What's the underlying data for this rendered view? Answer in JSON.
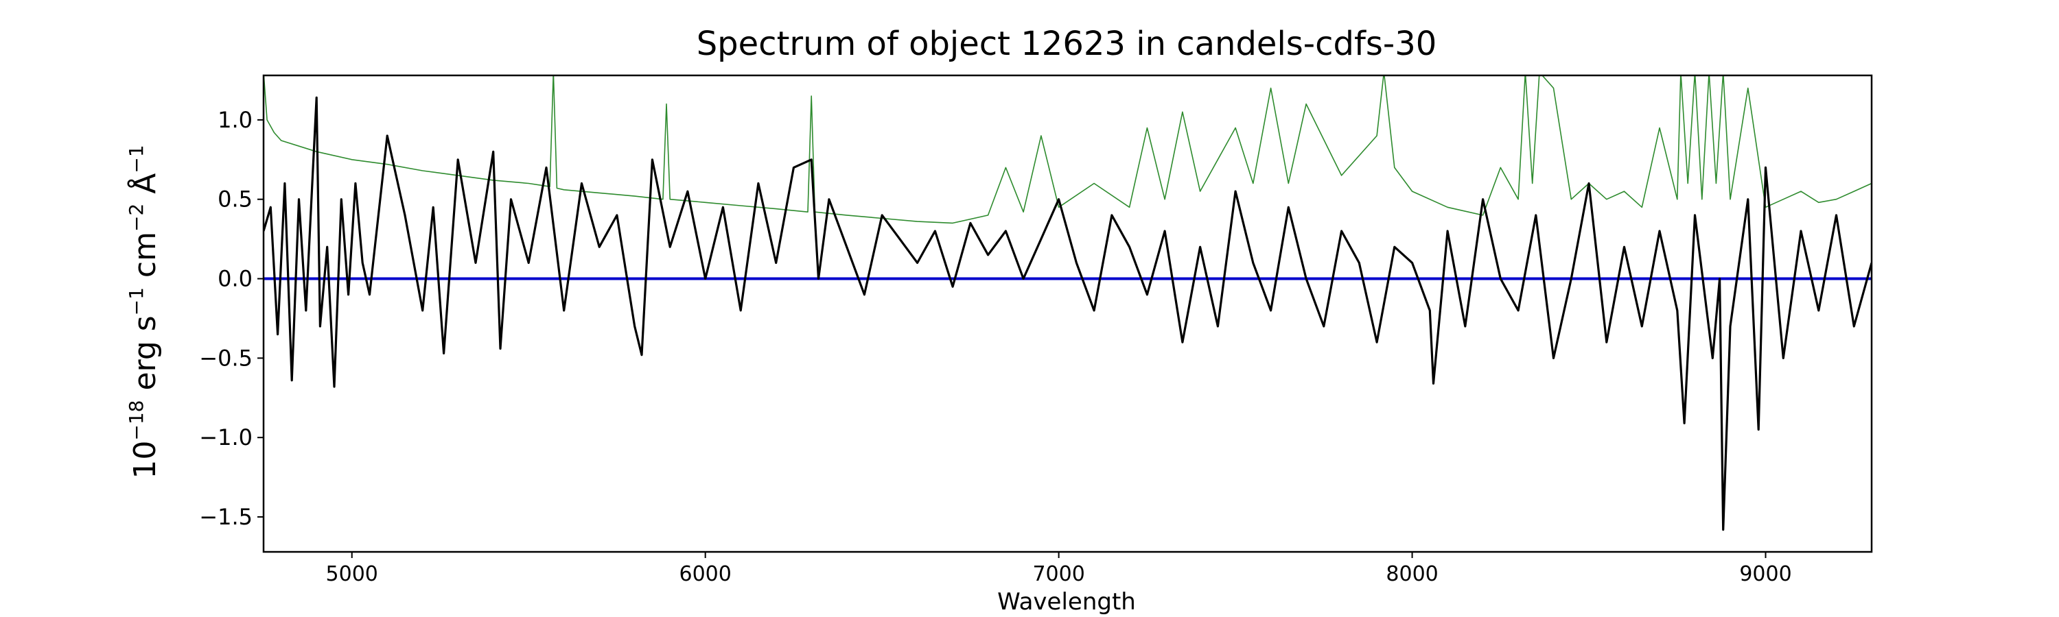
{
  "chart_data": {
    "type": "line",
    "title": "Spectrum of object 12623 in candels-cdfs-30",
    "xlabel": "Wavelength",
    "ylabel": {
      "base": "10",
      "exp1": "−18",
      "unit1": " erg s",
      "exp2": "−1",
      "unit2": " cm",
      "exp3": "−2",
      "unit3": " Å",
      "exp4": "−1"
    },
    "xlim": [
      4750,
      9300
    ],
    "ylim": [
      -1.72,
      1.28
    ],
    "xticks": [
      5000,
      6000,
      7000,
      8000,
      9000
    ],
    "xtick_labels": [
      "5000",
      "6000",
      "7000",
      "8000",
      "9000"
    ],
    "yticks": [
      1.0,
      0.5,
      0.0,
      -0.5,
      -1.0,
      -1.5
    ],
    "ytick_labels": [
      "1.0",
      "0.5",
      "0.0",
      "−0.5",
      "−1.0",
      "−1.5"
    ],
    "grid": false,
    "series": [
      {
        "role": "flux",
        "color": "#000000",
        "x": [
          4750,
          4770,
          4790,
          4810,
          4830,
          4850,
          4870,
          4890,
          4900,
          4910,
          4930,
          4950,
          4970,
          4990,
          5010,
          5030,
          5050,
          5100,
          5150,
          5200,
          5230,
          5260,
          5300,
          5350,
          5400,
          5420,
          5450,
          5500,
          5550,
          5600,
          5650,
          5700,
          5750,
          5800,
          5820,
          5850,
          5900,
          5950,
          6000,
          6050,
          6100,
          6150,
          6200,
          6250,
          6300,
          6320,
          6350,
          6400,
          6450,
          6500,
          6550,
          6600,
          6650,
          6700,
          6750,
          6800,
          6850,
          6900,
          6950,
          7000,
          7050,
          7100,
          7150,
          7200,
          7250,
          7300,
          7350,
          7400,
          7450,
          7500,
          7550,
          7600,
          7650,
          7700,
          7750,
          7800,
          7850,
          7900,
          7950,
          8000,
          8050,
          8060,
          8100,
          8150,
          8200,
          8250,
          8300,
          8350,
          8400,
          8450,
          8500,
          8550,
          8600,
          8650,
          8700,
          8750,
          8770,
          8800,
          8850,
          8870,
          8880,
          8900,
          8950,
          8980,
          9000,
          9050,
          9100,
          9150,
          9200,
          9250,
          9300
        ],
        "y": [
          0.3,
          0.45,
          -0.35,
          0.6,
          -0.64,
          0.5,
          -0.2,
          0.7,
          1.14,
          -0.3,
          0.2,
          -0.68,
          0.5,
          -0.1,
          0.6,
          0.1,
          -0.1,
          0.9,
          0.4,
          -0.2,
          0.45,
          -0.47,
          0.75,
          0.1,
          0.8,
          -0.44,
          0.5,
          0.1,
          0.7,
          -0.2,
          0.6,
          0.2,
          0.4,
          -0.3,
          -0.48,
          0.75,
          0.2,
          0.55,
          0.0,
          0.45,
          -0.2,
          0.6,
          0.1,
          0.7,
          0.75,
          0.0,
          0.5,
          0.2,
          -0.1,
          0.4,
          0.25,
          0.1,
          0.3,
          -0.05,
          0.35,
          0.15,
          0.3,
          0.0,
          0.25,
          0.5,
          0.1,
          -0.2,
          0.4,
          0.2,
          -0.1,
          0.3,
          -0.4,
          0.2,
          -0.3,
          0.55,
          0.1,
          -0.2,
          0.45,
          0.0,
          -0.3,
          0.3,
          0.1,
          -0.4,
          0.2,
          0.1,
          -0.2,
          -0.66,
          0.3,
          -0.3,
          0.5,
          0.0,
          -0.2,
          0.4,
          -0.5,
          0.0,
          0.6,
          -0.4,
          0.2,
          -0.3,
          0.3,
          -0.2,
          -0.91,
          0.4,
          -0.5,
          0.0,
          -1.58,
          -0.3,
          0.5,
          -0.95,
          0.7,
          -0.5,
          0.3,
          -0.2,
          0.4,
          -0.3,
          0.1
        ]
      },
      {
        "role": "error",
        "color": "#2e8b2e",
        "x": [
          4750,
          4760,
          4780,
          4800,
          4900,
          5000,
          5100,
          5200,
          5300,
          5400,
          5500,
          5560,
          5570,
          5580,
          5600,
          5700,
          5800,
          5880,
          5890,
          5900,
          6000,
          6100,
          6200,
          6290,
          6300,
          6310,
          6400,
          6500,
          6600,
          6700,
          6800,
          6850,
          6900,
          6950,
          7000,
          7100,
          7200,
          7250,
          7300,
          7350,
          7400,
          7500,
          7550,
          7600,
          7650,
          7700,
          7800,
          7900,
          7920,
          7950,
          8000,
          8100,
          8200,
          8250,
          8300,
          8320,
          8340,
          8360,
          8400,
          8450,
          8500,
          8550,
          8600,
          8650,
          8700,
          8750,
          8760,
          8780,
          8800,
          8820,
          8840,
          8860,
          8880,
          8900,
          8950,
          9000,
          9050,
          9100,
          9150,
          9200,
          9250,
          9300
        ],
        "y": [
          1.3,
          1.0,
          0.92,
          0.87,
          0.8,
          0.75,
          0.72,
          0.68,
          0.65,
          0.62,
          0.6,
          0.58,
          1.3,
          0.57,
          0.56,
          0.54,
          0.52,
          0.5,
          1.1,
          0.5,
          0.48,
          0.46,
          0.44,
          0.42,
          1.15,
          0.42,
          0.4,
          0.38,
          0.36,
          0.35,
          0.4,
          0.7,
          0.42,
          0.9,
          0.45,
          0.6,
          0.45,
          0.95,
          0.5,
          1.05,
          0.55,
          0.95,
          0.6,
          1.2,
          0.6,
          1.1,
          0.65,
          0.9,
          1.3,
          0.7,
          0.55,
          0.45,
          0.4,
          0.7,
          0.5,
          1.3,
          0.6,
          1.3,
          1.2,
          0.5,
          0.6,
          0.5,
          0.55,
          0.45,
          0.95,
          0.5,
          1.3,
          0.6,
          1.3,
          0.5,
          1.3,
          0.6,
          1.3,
          0.5,
          1.2,
          0.45,
          0.5,
          0.55,
          0.48,
          0.5,
          0.55,
          0.6
        ]
      },
      {
        "role": "zero",
        "color": "#0000cc",
        "x": [
          4750,
          9300
        ],
        "y": [
          0.0,
          0.0
        ]
      }
    ]
  }
}
